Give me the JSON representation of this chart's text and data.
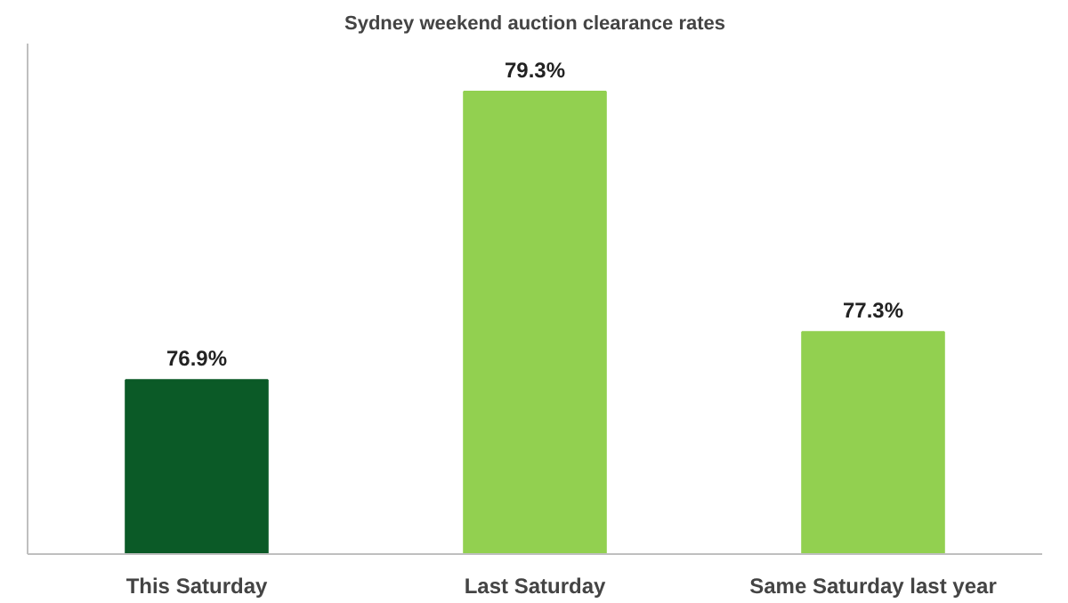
{
  "chart_data": {
    "type": "bar",
    "title": "Sydney weekend auction clearance rates",
    "categories": [
      "This Saturday",
      "Last Saturday",
      "Same Saturday last year"
    ],
    "values": [
      76.9,
      79.3,
      77.3
    ],
    "colors": [
      "#0b5a27",
      "#92d050",
      "#92d050"
    ],
    "value_labels": [
      "76.9%",
      "79.3%",
      "77.3%"
    ],
    "ylim": [
      75.45,
      79.7
    ],
    "grid": false
  }
}
